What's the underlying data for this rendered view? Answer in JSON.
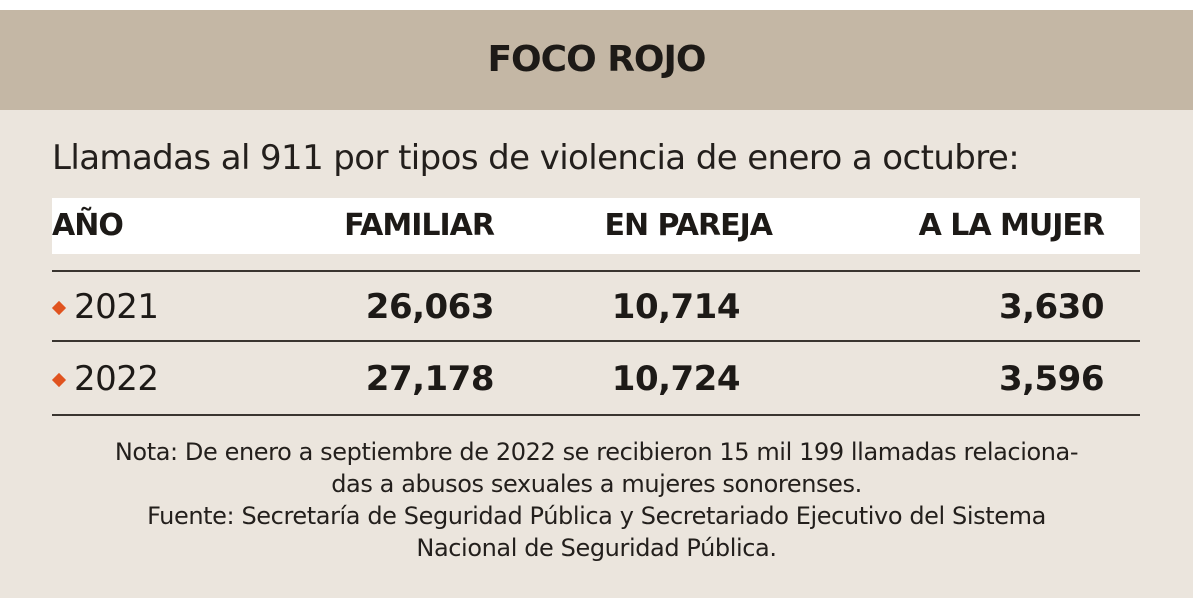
{
  "header": {
    "title": "FOCO ROJO"
  },
  "subtitle": "Llamadas al 911 por tipos de violencia de enero a octubre:",
  "table": {
    "columns": [
      "AÑO",
      "FAMILIAR",
      "EN PAREJA",
      "A LA MUJER"
    ],
    "rows": [
      {
        "year": "2021",
        "familiar": "26,063",
        "pareja": "10,714",
        "mujer": "3,630"
      },
      {
        "year": "2022",
        "familiar": "27,178",
        "pareja": "10,724",
        "mujer": "3,596"
      }
    ]
  },
  "notes": {
    "line1": "Nota: De enero a septiembre de 2022 se recibieron 15 mil 199 llamadas relaciona-",
    "line2": "das a abusos sexuales a mujeres sonorenses.",
    "line3": "Fuente: Secretaría de Seguridad Pública y Secretariado Ejecutivo del Sistema",
    "line4": "Nacional de Seguridad Pública."
  },
  "colors": {
    "header_band": "#c4b7a5",
    "background": "#ebe5dd",
    "bullet": "#e0531f"
  },
  "icons": {
    "row_bullet": "orange-diamond-icon"
  }
}
